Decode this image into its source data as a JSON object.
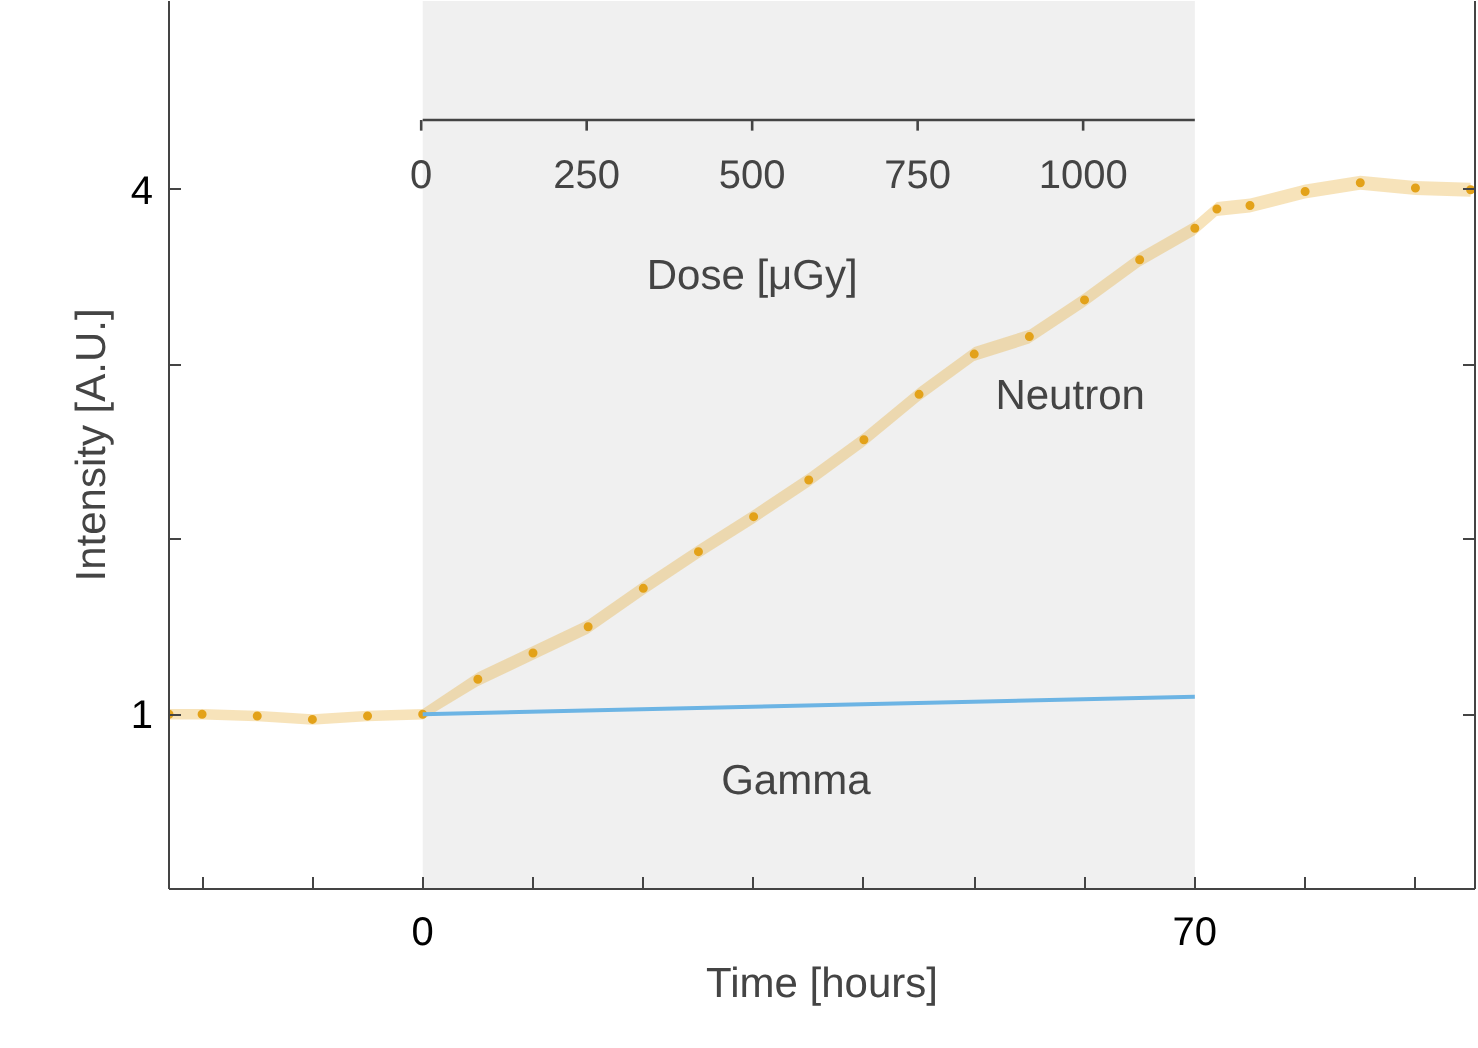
{
  "chart_data": {
    "type": "scatter",
    "xlabel": "Time [hours]",
    "ylabel": "Intensity [A.U.]",
    "x2label": "Dose [μGy]",
    "xlim": [
      -23,
      95.4
    ],
    "ylim": [
      0,
      5.08
    ],
    "x2lim": [
      -381,
      1592
    ],
    "xticks": [
      {
        "value": -20,
        "label": null
      },
      {
        "value": -10,
        "label": null
      },
      0,
      {
        "value": 10,
        "label": null
      },
      {
        "value": 20,
        "label": null
      },
      {
        "value": 30,
        "label": null
      },
      {
        "value": 40,
        "label": null
      },
      {
        "value": 50,
        "label": null
      },
      {
        "value": 60,
        "label": null
      },
      70,
      {
        "value": 80,
        "label": null
      },
      {
        "value": 90,
        "label": null
      }
    ],
    "yticks": [
      1,
      {
        "value": 2,
        "label": null
      },
      {
        "value": 3,
        "label": null
      },
      4
    ],
    "x2ticks": [
      0,
      250,
      500,
      750,
      1000
    ],
    "bands": [
      {
        "axis": "x",
        "from": 0,
        "to": 70,
        "color": "#f0f0f0"
      }
    ],
    "grid": false,
    "series": [
      {
        "name": "Neutron",
        "marker": "circle",
        "color": "#e3a21a",
        "x": [
          -23,
          -20,
          -15,
          -10,
          -5,
          0,
          5,
          10,
          15,
          20,
          25,
          30,
          35,
          40,
          45,
          50,
          55,
          60,
          65,
          70,
          72,
          75,
          80,
          85,
          90,
          95
        ],
        "values": [
          1.0,
          1.0,
          0.99,
          0.97,
          0.99,
          1.0,
          1.2,
          1.35,
          1.5,
          1.72,
          1.93,
          2.13,
          2.34,
          2.57,
          2.83,
          3.06,
          3.16,
          3.37,
          3.6,
          3.78,
          3.89,
          3.91,
          3.99,
          4.04,
          4.01,
          4.0
        ],
        "lower": [
          0.97,
          0.97,
          0.96,
          0.94,
          0.96,
          0.97,
          1.16,
          1.31,
          1.46,
          1.68,
          1.89,
          2.09,
          2.3,
          2.53,
          2.79,
          3.02,
          3.12,
          3.33,
          3.56,
          3.74,
          3.85,
          3.87,
          3.95,
          4.0,
          3.97,
          3.96
        ],
        "upper": [
          1.03,
          1.03,
          1.02,
          1.0,
          1.02,
          1.03,
          1.24,
          1.39,
          1.54,
          1.76,
          1.97,
          2.17,
          2.38,
          2.61,
          2.87,
          3.1,
          3.2,
          3.41,
          3.64,
          3.82,
          3.93,
          3.95,
          4.03,
          4.08,
          4.05,
          4.04
        ]
      },
      {
        "name": "Gamma",
        "type": "line",
        "marker": "none",
        "color": "#6cb4e4",
        "x": [
          0,
          70
        ],
        "values": [
          1.0,
          1.1
        ]
      }
    ]
  }
}
